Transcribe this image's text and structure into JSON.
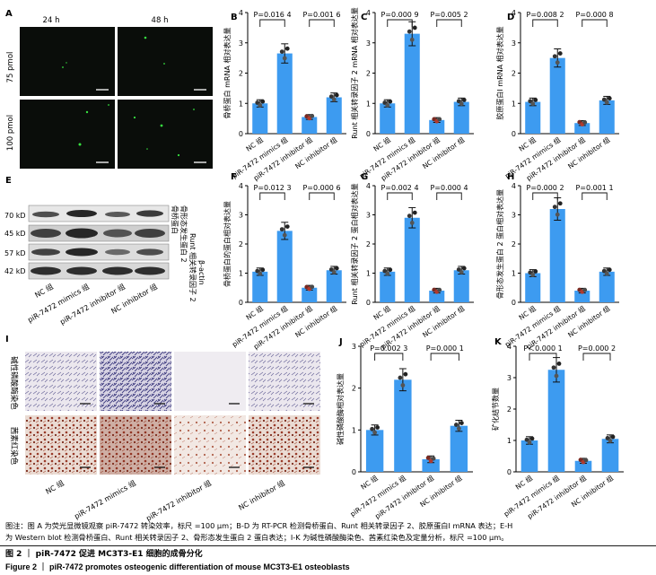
{
  "panels": {
    "A": {
      "label": "A",
      "col_labels": [
        "24 h",
        "48 h"
      ],
      "row_labels": [
        "75 pmol",
        "100 pmol"
      ]
    },
    "E": {
      "label": "E",
      "bands": [
        {
          "size": "70 kD",
          "name": "骨桥蛋白"
        },
        {
          "size": "45 kD",
          "name": "骨形态发生蛋白 2"
        },
        {
          "size": "57 kD",
          "name": "Runt 相关转录因子 2"
        },
        {
          "size": "42 kD",
          "name": "β-actin"
        }
      ],
      "lanes": [
        "NC 组",
        "piR-7472 mimics 组",
        "piR-7472 inhibitor 组",
        "NC inhibitor 组"
      ]
    },
    "I": {
      "label": "I",
      "row_labels": [
        "碱性磷酸酶染色",
        "茜素红染色"
      ],
      "lanes": [
        "NC 组",
        "piR-7472 mimics 组",
        "piR-7472 inhibitor 组",
        "NC inhibitor 组"
      ]
    }
  },
  "chart_data": [
    {
      "id": "B",
      "type": "bar",
      "ylabel": "骨桥蛋白 mRNA 相对表达量",
      "ylim": [
        0,
        4
      ],
      "yticks": [
        "0",
        "1",
        "2",
        "3",
        "4"
      ],
      "categories": [
        "NC 组",
        "piR-7472 mimics 组",
        "piR-7472 inhibitor 组",
        "NC inhibitor 组"
      ],
      "values": [
        1.0,
        2.65,
        0.55,
        1.2
      ],
      "annotations": [
        "P=0.016 4",
        "P=0.001 6"
      ]
    },
    {
      "id": "C",
      "type": "bar",
      "ylabel": "Runt 相关转录因子 2 mRNA 相对表达量",
      "ylim": [
        0,
        4
      ],
      "yticks": [
        "0",
        "1",
        "2",
        "3",
        "4"
      ],
      "categories": [
        "NC 组",
        "piR-7472 mimics 组",
        "piR-7472 inhibitor 组",
        "NC inhibitor 组"
      ],
      "values": [
        1.0,
        3.3,
        0.45,
        1.05
      ],
      "annotations": [
        "P=0.000 9",
        "P=0.005 2"
      ]
    },
    {
      "id": "D",
      "type": "bar",
      "ylabel": "胶原蛋白Ⅰ mRNA 相对表达量",
      "ylim": [
        0,
        4
      ],
      "yticks": [
        "0",
        "1",
        "2",
        "3",
        "4"
      ],
      "categories": [
        "NC 组",
        "piR-7472 mimics 组",
        "piR-7472 inhibitor 组",
        "NC inhibitor 组"
      ],
      "values": [
        1.05,
        2.5,
        0.35,
        1.1
      ],
      "annotations": [
        "P=0.008 2",
        "P=0.000 8"
      ]
    },
    {
      "id": "F",
      "type": "bar",
      "ylabel": "骨桥蛋白的蛋白相对表达量",
      "ylim": [
        0,
        4
      ],
      "yticks": [
        "0",
        "1",
        "2",
        "3",
        "4"
      ],
      "categories": [
        "NC 组",
        "piR-7472 mimics 组",
        "piR-7472 inhibitor 组",
        "NC inhibitor 组"
      ],
      "values": [
        1.05,
        2.45,
        0.5,
        1.1
      ],
      "annotations": [
        "P=0.012 3",
        "P=0.000 6"
      ]
    },
    {
      "id": "G",
      "type": "bar",
      "ylabel": "Runt 相关转录因子 2 蛋白相对表达量",
      "ylim": [
        0,
        4
      ],
      "yticks": [
        "0",
        "1",
        "2",
        "3",
        "4"
      ],
      "categories": [
        "NC 组",
        "piR-7472 mimics 组",
        "piR-7472 inhibitor 组",
        "NC inhibitor 组"
      ],
      "values": [
        1.05,
        2.9,
        0.4,
        1.1
      ],
      "annotations": [
        "P=0.002 4",
        "P=0.000 4"
      ]
    },
    {
      "id": "H",
      "type": "bar",
      "ylabel": "骨形态发生蛋白 2 蛋白相对表达量",
      "ylim": [
        0,
        4
      ],
      "yticks": [
        "0",
        "1",
        "2",
        "3",
        "4"
      ],
      "categories": [
        "NC 组",
        "piR-7472 mimics 组",
        "piR-7472 inhibitor 组",
        "NC inhibitor 组"
      ],
      "values": [
        1.0,
        3.2,
        0.4,
        1.05
      ],
      "annotations": [
        "P=0.000 2",
        "P=0.001 1"
      ]
    },
    {
      "id": "J",
      "type": "bar",
      "ylabel": "碱性磷酸酶相对表达量",
      "ylim": [
        0,
        3
      ],
      "yticks": [
        "0",
        "1",
        "2",
        "3"
      ],
      "categories": [
        "NC 组",
        "piR-7472 mimics 组",
        "piR-7472 inhibitor 组",
        "NC inhibitor 组"
      ],
      "values": [
        1.0,
        2.2,
        0.3,
        1.1
      ],
      "annotations": [
        "P=0.002 3",
        "P=0.000 1"
      ]
    },
    {
      "id": "K",
      "type": "bar",
      "ylabel": "矿化结节数量",
      "ylim": [
        0,
        4
      ],
      "yticks": [
        "0",
        "1",
        "2",
        "3",
        "4"
      ],
      "categories": [
        "NC 组",
        "piR-7472 mimics 组",
        "piR-7472 inhibitor 组",
        "NC inhibitor 组"
      ],
      "values": [
        1.0,
        3.25,
        0.35,
        1.05
      ],
      "annotations": [
        "P＜0.000 1",
        "P=0.000 2"
      ]
    }
  ],
  "caption": {
    "line1": "图注：图 A 为荧光显微镜观察 piR-7472 转染效率，标尺 =100 μm；B-D 为 RT-PCR 检测骨桥蛋白、Runt 相关转录因子 2、胶原蛋白Ⅰ mRNA 表达；E-H",
    "line2": "为 Western blot 检测骨桥蛋白、Runt 相关转录因子 2、骨形态发生蛋白 2 蛋白表达；I-K 为碱性磷酸酶染色、茜素红染色及定量分析，标尺 =100 μm。",
    "title_cn": "图 2 ｜ piR-7472 促进 MC3T3-E1 细胞的成骨分化",
    "title_en": "Figure 2 ｜ piR-7472 promotes osteogenic differentiation of mouse MC3T3-E1 osteoblasts"
  },
  "colors": {
    "bar": "#3d9bf0",
    "dot": "#222222",
    "fluor_bg": "#0a0f0a",
    "fluor_dot": "#35e040",
    "alp_bg": "#ece8ef",
    "alp_stain": "#4d4a8c",
    "ars_bg": "#efe1da",
    "ars_stain": "#8a2e1e"
  }
}
